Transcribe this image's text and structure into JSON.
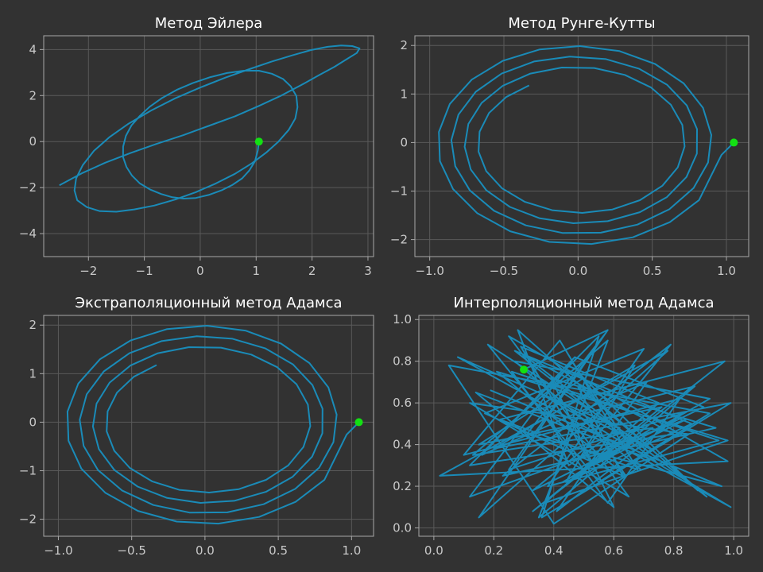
{
  "chart_data": [
    {
      "type": "line",
      "title": "Метод Эйлера",
      "xlim": [
        -2.8,
        3.1
      ],
      "ylim": [
        -5.0,
        4.6
      ],
      "xticks": [
        -2,
        -1,
        0,
        1,
        2,
        3
      ],
      "xtick_labels": [
        "−2",
        "−1",
        "0",
        "1",
        "2",
        "3"
      ],
      "yticks": [
        -4,
        -2,
        0,
        2,
        4
      ],
      "ytick_labels": [
        "−4",
        "−2",
        "0",
        "2",
        "4"
      ],
      "grid": true,
      "series": [
        {
          "color": "#1a8bb8",
          "x": [
            1.05,
            1.03,
            0.98,
            0.88,
            0.75,
            0.58,
            0.38,
            0.15,
            -0.08,
            -0.3,
            -0.5,
            -0.7,
            -0.9,
            -1.08,
            -1.22,
            -1.32,
            -1.38,
            -1.38,
            -1.33,
            -1.23,
            -1.08,
            -0.9,
            -0.68,
            -0.42,
            -0.13,
            0.18,
            0.48,
            0.78,
            1.05,
            1.28,
            1.48,
            1.62,
            1.72,
            1.74,
            1.7,
            1.58,
            1.4,
            1.18,
            0.92,
            0.62,
            0.28,
            -0.08,
            -0.45,
            -0.82,
            -1.18,
            -1.5,
            -1.8,
            -2.03,
            -2.2,
            -2.25,
            -2.22,
            -2.1,
            -1.9,
            -1.62,
            -1.28,
            -0.88,
            -0.45,
            0.0,
            0.45,
            0.88,
            1.28,
            1.65,
            1.98,
            2.28,
            2.52,
            2.72,
            2.85,
            2.8,
            2.62,
            2.4,
            2.12,
            1.8,
            1.45,
            1.05,
            0.62,
            0.15,
            -0.3,
            -0.78,
            -1.25,
            -1.7,
            -2.12,
            -2.52
          ],
          "y": [
            0.0,
            -0.38,
            -0.85,
            -1.25,
            -1.6,
            -1.88,
            -2.12,
            -2.32,
            -2.45,
            -2.48,
            -2.42,
            -2.28,
            -2.08,
            -1.82,
            -1.48,
            -1.1,
            -0.68,
            -0.22,
            0.25,
            0.7,
            1.12,
            1.52,
            1.9,
            2.25,
            2.55,
            2.8,
            2.98,
            3.08,
            3.08,
            2.95,
            2.72,
            2.4,
            1.98,
            1.5,
            1.0,
            0.5,
            0.0,
            -0.48,
            -0.95,
            -1.4,
            -1.82,
            -2.2,
            -2.52,
            -2.78,
            -2.95,
            -3.05,
            -3.02,
            -2.85,
            -2.55,
            -2.12,
            -1.6,
            -1.02,
            -0.4,
            0.2,
            0.78,
            1.35,
            1.88,
            2.35,
            2.78,
            3.15,
            3.48,
            3.75,
            3.98,
            4.12,
            4.18,
            4.15,
            4.05,
            3.85,
            3.58,
            3.25,
            2.88,
            2.45,
            2.0,
            1.55,
            1.1,
            0.68,
            0.28,
            -0.1,
            -0.5,
            -0.92,
            -1.38,
            -1.9
          ]
        },
        {
          "color": "#13e013",
          "marker": true,
          "x": [
            1.05
          ],
          "y": [
            0
          ]
        }
      ]
    },
    {
      "type": "line",
      "title": "Метод Рунге-Кутты",
      "xlim": [
        -1.1,
        1.15
      ],
      "ylim": [
        -2.35,
        2.2
      ],
      "xticks": [
        -1.0,
        -0.5,
        0.0,
        0.5,
        1.0
      ],
      "xtick_labels": [
        "−1.0",
        "−0.5",
        "0.0",
        "0.5",
        "1.0"
      ],
      "yticks": [
        -2,
        -1,
        0,
        1,
        2
      ],
      "ytick_labels": [
        "−2",
        "−1",
        "0",
        "1",
        "2"
      ],
      "grid": true,
      "generator": {
        "kind": "spiral",
        "x0": 1.05,
        "rx_start": 0.99,
        "rx_end": 0.66,
        "ry_start": 2.15,
        "ry_end": 1.36,
        "turns": 3,
        "steps": 78,
        "end_angle_deg": 240
      },
      "series": [
        {
          "color": "#1a8bb8",
          "name": ""
        },
        {
          "color": "#13e013",
          "marker": true,
          "x": [
            1.05
          ],
          "y": [
            0
          ]
        }
      ]
    },
    {
      "type": "line",
      "title": "Экстраполяционный метод Адамса",
      "xlim": [
        -1.1,
        1.15
      ],
      "ylim": [
        -2.35,
        2.2
      ],
      "xticks": [
        -1.0,
        -0.5,
        0.0,
        0.5,
        1.0
      ],
      "xtick_labels": [
        "−1.0",
        "−0.5",
        "0.0",
        "0.5",
        "1.0"
      ],
      "yticks": [
        -2,
        -1,
        0,
        1,
        2
      ],
      "ytick_labels": [
        "−2",
        "−1",
        "0",
        "1",
        "2"
      ],
      "grid": true,
      "generator": {
        "kind": "spiral",
        "x0": 1.05,
        "rx_start": 0.99,
        "rx_end": 0.66,
        "ry_start": 2.15,
        "ry_end": 1.36,
        "turns": 3,
        "steps": 78,
        "end_angle_deg": 240
      },
      "series": [
        {
          "color": "#1a8bb8",
          "name": ""
        },
        {
          "color": "#13e013",
          "marker": true,
          "x": [
            1.05
          ],
          "y": [
            0
          ]
        }
      ]
    },
    {
      "type": "line",
      "title": "Интерполяционный метод Адамса",
      "xlim": [
        -0.05,
        1.05
      ],
      "ylim": [
        -0.04,
        1.02
      ],
      "xticks": [
        0.0,
        0.2,
        0.4,
        0.6,
        0.8,
        1.0
      ],
      "xtick_labels": [
        "0.0",
        "0.2",
        "0.4",
        "0.6",
        "0.8",
        "1.0"
      ],
      "yticks": [
        0.0,
        0.2,
        0.4,
        0.6,
        0.8,
        1.0
      ],
      "ytick_labels": [
        "0.0",
        "0.2",
        "0.4",
        "0.6",
        "0.8",
        "1.0"
      ],
      "grid": true,
      "series": [
        {
          "color": "#1a8bb8",
          "x": [
            0.3,
            0.58,
            0.15,
            0.78,
            0.02,
            0.98,
            0.25,
            0.65,
            0.12,
            0.85,
            0.4,
            0.05,
            0.92,
            0.55,
            0.18,
            0.72,
            0.35,
            0.99,
            0.08,
            0.62,
            0.45,
            0.28,
            0.88,
            0.5,
            0.15,
            0.76,
            0.33,
            0.97,
            0.22,
            0.68,
            0.42,
            0.1,
            0.82,
            0.58,
            0.26,
            0.95,
            0.38,
            0.7,
            0.17,
            0.63,
            0.48,
            0.91,
            0.3,
            0.8,
            0.12,
            0.55,
            0.36,
            0.99,
            0.2,
            0.67,
            0.44,
            0.86,
            0.27,
            0.74,
            0.14,
            0.6,
            0.39,
            0.94,
            0.23,
            0.79,
            0.52,
            0.33,
            0.9,
            0.47,
            0.16,
            0.71,
            0.41,
            0.83,
            0.25,
            0.57,
            0.31,
            0.96,
            0.19,
            0.66,
            0.46,
            0.12,
            0.84,
            0.53,
            0.29,
            0.75,
            0.37,
            0.98,
            0.21,
            0.64,
            0.5,
            0.87,
            0.35,
            0.58,
            0.13,
            0.73,
            0.43,
            0.92,
            0.27,
            0.69
          ],
          "y": [
            0.76,
            0.95,
            0.05,
            0.85,
            0.25,
            0.32,
            0.92,
            0.15,
            0.6,
            0.45,
            0.02,
            0.78,
            0.55,
            0.22,
            0.88,
            0.38,
            0.65,
            0.1,
            0.82,
            0.48,
            0.3,
            0.95,
            0.18,
            0.72,
            0.4,
            0.58,
            0.08,
            0.8,
            0.52,
            0.28,
            0.9,
            0.35,
            0.62,
            0.12,
            0.75,
            0.42,
            0.2,
            0.86,
            0.55,
            0.25,
            0.68,
            0.15,
            0.83,
            0.45,
            0.3,
            0.92,
            0.05,
            0.6,
            0.38,
            0.78,
            0.22,
            0.5,
            0.85,
            0.32,
            0.65,
            0.1,
            0.72,
            0.48,
            0.25,
            0.88,
            0.4,
            0.18,
            0.58,
            0.82,
            0.35,
            0.7,
            0.08,
            0.55,
            0.28,
            0.93,
            0.45,
            0.2,
            0.66,
            0.38,
            0.8,
            0.15,
            0.52,
            0.3,
            0.87,
            0.6,
            0.12,
            0.42,
            0.75,
            0.25,
            0.55,
            0.68,
            0.05,
            0.9,
            0.35,
            0.48,
            0.22,
            0.62,
            0.8,
            0.28
          ]
        },
        {
          "color": "#13e013",
          "marker": true,
          "x": [
            0.3
          ],
          "y": [
            0.76
          ]
        }
      ]
    }
  ]
}
